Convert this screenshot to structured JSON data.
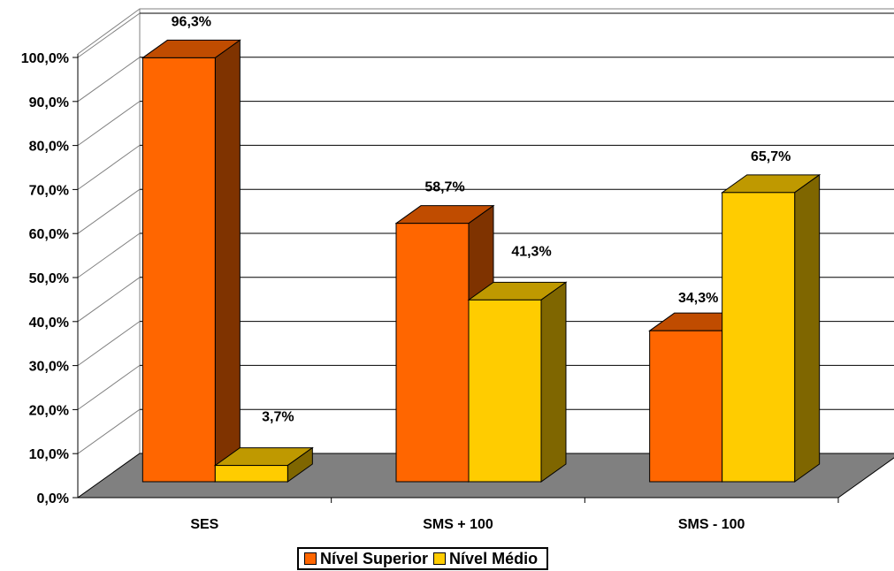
{
  "chart_data": {
    "type": "bar",
    "title": "",
    "xlabel": "",
    "ylabel": "",
    "ylim": [
      0,
      100
    ],
    "y_ticks": [
      "0,0%",
      "10,0%",
      "20,0%",
      "30,0%",
      "40,0%",
      "50,0%",
      "60,0%",
      "70,0%",
      "80,0%",
      "90,0%",
      "100,0%"
    ],
    "categories": [
      "SES",
      "SMS + 100",
      "SMS - 100"
    ],
    "series": [
      {
        "name": "Nível Superior",
        "values": [
          96.3,
          58.7,
          34.3
        ],
        "labels": [
          "96,3%",
          "58,7%",
          "34,3%"
        ]
      },
      {
        "name": "Nível Médio",
        "values": [
          3.7,
          41.3,
          65.7
        ],
        "labels": [
          "3,7%",
          "41,3%",
          "65,7%"
        ]
      }
    ],
    "grid": true,
    "legend_position": "bottom",
    "style": "3d-clustered-column",
    "colors": {
      "series0_front": "#FF6600",
      "series0_top": "#C04C00",
      "series0_side": "#7F3300",
      "series1_front": "#FFCC00",
      "series1_top": "#BF9900",
      "series1_side": "#7F6600",
      "floor": "#808080",
      "grid": "#000000"
    }
  }
}
